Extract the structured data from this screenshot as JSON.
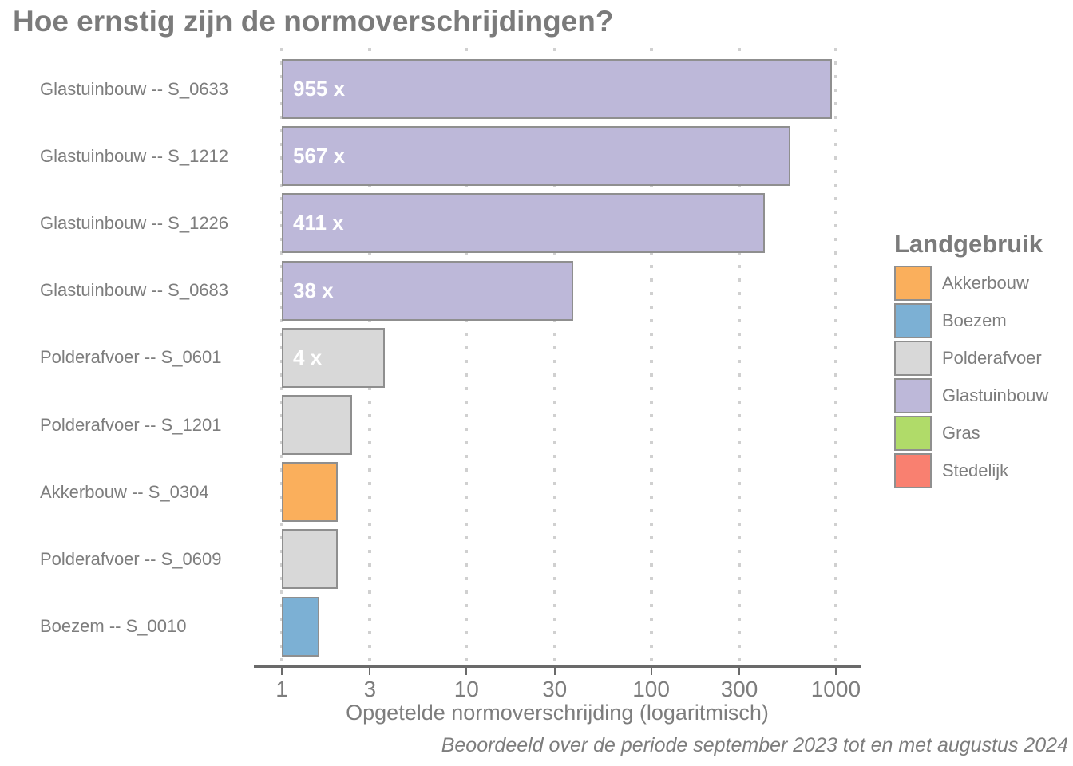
{
  "title": "Hoe ernstig zijn de normoverschrijdingen?",
  "caption": "Beoordeeld over de periode september 2023 tot en met augustus 2024",
  "legend": {
    "title": "Landgebruik",
    "entries": [
      "Akkerbouw",
      "Boezem",
      "Polderafvoer",
      "Glastuinbouw",
      "Gras",
      "Stedelijk"
    ]
  },
  "chart_data": {
    "type": "bar",
    "orientation": "horizontal",
    "x_scale": "log10",
    "xlabel": "Opgetelde normoverschrijding (logaritmisch)",
    "x_ticks": [
      1,
      3,
      10,
      30,
      100,
      300,
      1000
    ],
    "x_range": [
      1,
      1400
    ],
    "grid": "dotted-vertical",
    "legend_position": "right",
    "colors": {
      "Akkerbouw": "#faaf5c",
      "Boezem": "#7cb0d4",
      "Polderafvoer": "#d8d8d8",
      "Glastuinbouw": "#bdb8d9",
      "Gras": "#b0db69",
      "Stedelijk": "#f98070"
    },
    "bars": [
      {
        "category": "Glastuinbouw -- S_0633",
        "landuse": "Glastuinbouw",
        "value": 955,
        "value_label": "955 x"
      },
      {
        "category": "Glastuinbouw -- S_1212",
        "landuse": "Glastuinbouw",
        "value": 567,
        "value_label": "567 x"
      },
      {
        "category": "Glastuinbouw -- S_1226",
        "landuse": "Glastuinbouw",
        "value": 411,
        "value_label": "411 x"
      },
      {
        "category": "Glastuinbouw -- S_0683",
        "landuse": "Glastuinbouw",
        "value": 38,
        "value_label": "38 x"
      },
      {
        "category": "Polderafvoer -- S_0601",
        "landuse": "Polderafvoer",
        "value": 3.6,
        "value_label": "4 x"
      },
      {
        "category": "Polderafvoer -- S_1201",
        "landuse": "Polderafvoer",
        "value": 2.4,
        "value_label": ""
      },
      {
        "category": "Akkerbouw -- S_0304",
        "landuse": "Akkerbouw",
        "value": 2.0,
        "value_label": ""
      },
      {
        "category": "Polderafvoer -- S_0609",
        "landuse": "Polderafvoer",
        "value": 2.0,
        "value_label": ""
      },
      {
        "category": "Boezem -- S_0010",
        "landuse": "Boezem",
        "value": 1.6,
        "value_label": ""
      }
    ]
  }
}
